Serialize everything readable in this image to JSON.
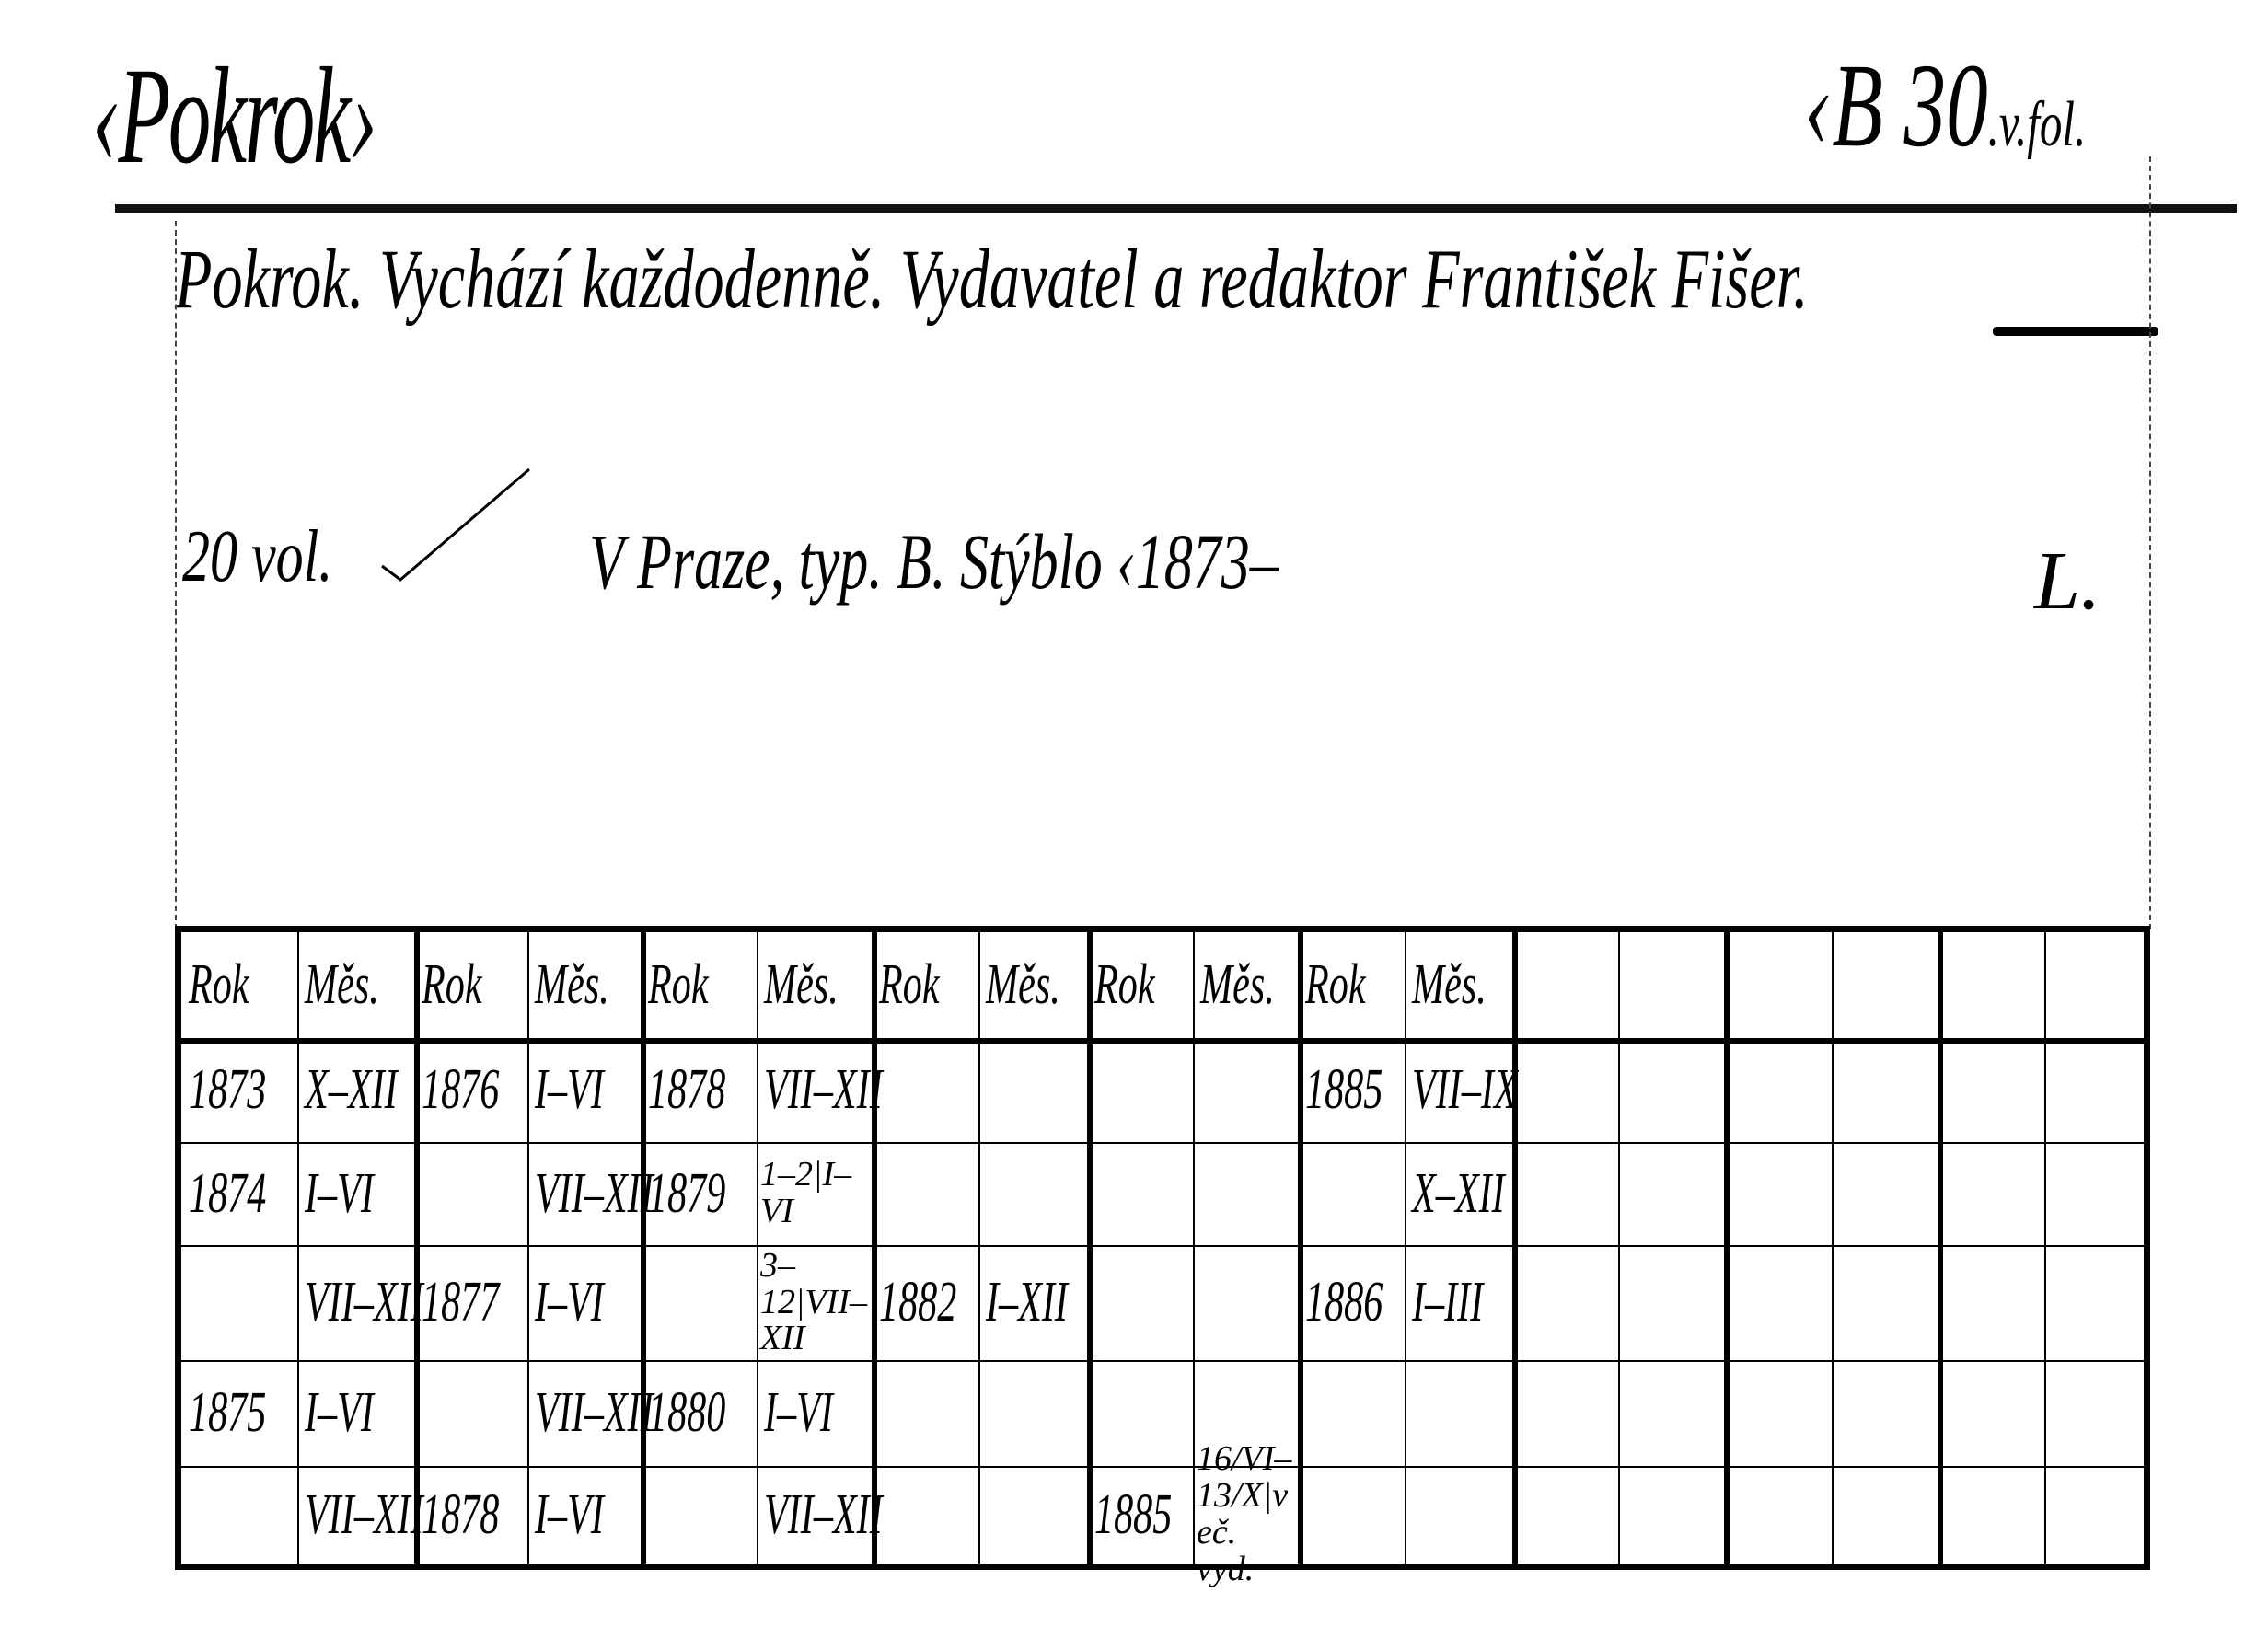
{
  "card": {
    "title": "‹Pokrok›",
    "call_number": "‹B 30",
    "call_suffix": ".v.fol.",
    "description": "Pokrok. Vychází každodenně. Vydavatel a redaktor František Fišer.",
    "volumes": "20 vol.",
    "imprint": "V Praze, typ. B. Stýblo ‹1873–",
    "mark": "L."
  },
  "holdings": {
    "headers": [
      "Rok",
      "Měs.",
      "Rok",
      "Měs.",
      "Rok",
      "Měs.",
      "Rok",
      "Měs.",
      "Rok",
      "Měs.",
      "Rok",
      "Měs.",
      "",
      "",
      "",
      "",
      "",
      ""
    ],
    "rows": [
      [
        "1873",
        "X–XII",
        "1876",
        "I–VI",
        "1878",
        "VII–XII",
        "",
        "",
        "",
        "",
        "1885",
        "VII–IX",
        "",
        "",
        "",
        "",
        "",
        ""
      ],
      [
        "1874",
        "I–VI",
        "",
        "VII–XII",
        "1879",
        "1–2|I–VI",
        "",
        "",
        "",
        "",
        "",
        "X–XII",
        "",
        "",
        "",
        "",
        "",
        ""
      ],
      [
        "",
        "VII–XII",
        "1877",
        "I–VI",
        "",
        "3–12|VII–XII",
        "1882",
        "I–XII",
        "",
        "",
        "1886",
        "I–III",
        "",
        "",
        "",
        "",
        "",
        ""
      ],
      [
        "1875",
        "I–VI",
        "",
        "VII–XII",
        "1880",
        "I–VI",
        "",
        "",
        "",
        "",
        "",
        "",
        "",
        "",
        "",
        "",
        "",
        ""
      ],
      [
        "",
        "VII–XII",
        "1878",
        "I–VI",
        "",
        "VII–XII",
        "",
        "",
        "1885",
        "16/VI–13/X|več. vyd.",
        "",
        "",
        "",
        "",
        "",
        "",
        "",
        ""
      ]
    ]
  }
}
